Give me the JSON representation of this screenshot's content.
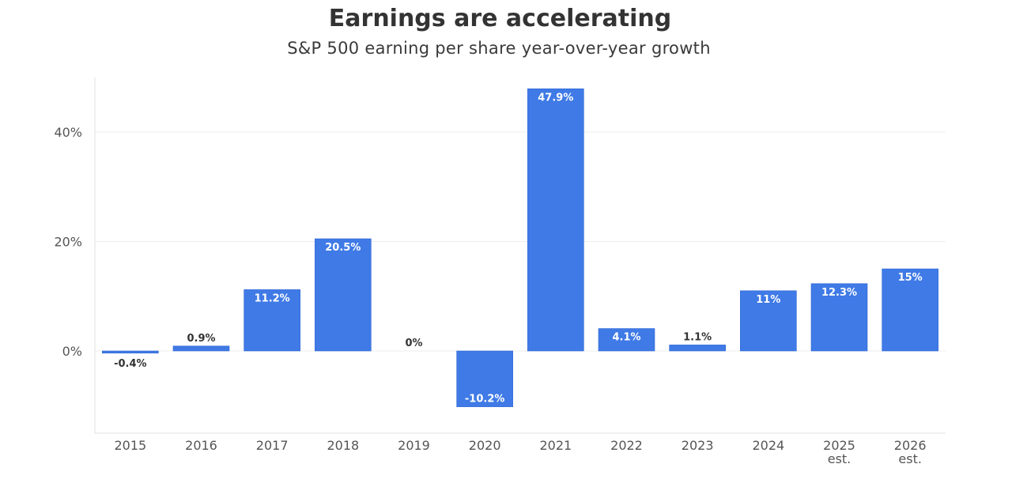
{
  "header": {
    "title": "Earnings are accelerating",
    "subtitle": "S&P 500 earning per share year-over-year growth"
  },
  "colors": {
    "bar": "#3f7ae6",
    "bar_border": "#2f66d4",
    "label_inside": "#ffffff",
    "label_outside": "#333333",
    "grid": "#ececec",
    "axis": "#e2e2e2"
  },
  "chart_data": {
    "type": "bar",
    "title": "Earnings are accelerating",
    "subtitle": "S&P 500 earning per share year-over-year growth",
    "xlabel": "",
    "ylabel": "",
    "categories": [
      [
        "2015"
      ],
      [
        "2016"
      ],
      [
        "2017"
      ],
      [
        "2018"
      ],
      [
        "2019"
      ],
      [
        "2020"
      ],
      [
        "2021"
      ],
      [
        "2022"
      ],
      [
        "2023"
      ],
      [
        "2024"
      ],
      [
        "2025",
        "est."
      ],
      [
        "2026",
        "est."
      ]
    ],
    "values": [
      -0.4,
      0.9,
      11.2,
      20.5,
      0,
      -10.2,
      47.9,
      4.1,
      1.1,
      11,
      12.3,
      15
    ],
    "data_labels": [
      "-0.4%",
      "0.9%",
      "11.2%",
      "20.5%",
      "0%",
      "-10.2%",
      "47.9%",
      "4.1%",
      "1.1%",
      "11%",
      "12.3%",
      "15%"
    ],
    "yticks": [
      0,
      20,
      40
    ],
    "ytick_labels": [
      "0%",
      "20%",
      "40%"
    ],
    "ylim": [
      -15,
      50
    ],
    "grid": true,
    "legend": "none"
  }
}
